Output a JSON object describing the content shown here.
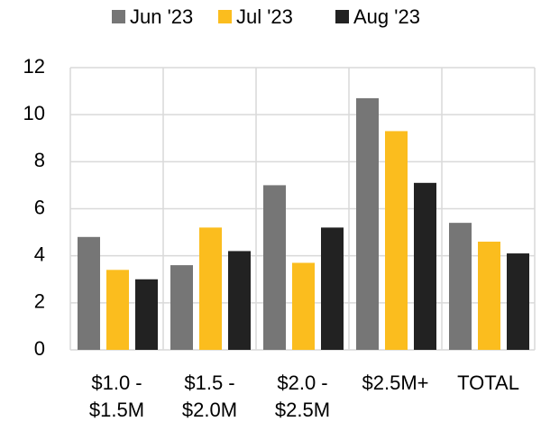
{
  "chart_data": {
    "type": "bar",
    "categories": [
      "$1.0 - $1.5M",
      "$1.5 - $2.0M",
      "$2.0 - $2.5M",
      "$2.5M+",
      "TOTAL"
    ],
    "series": [
      {
        "name": "Jun '23",
        "color": "#767676",
        "values": [
          4.8,
          3.6,
          7.0,
          10.7,
          5.4
        ]
      },
      {
        "name": "Jul '23",
        "color": "#fbbd1e",
        "values": [
          3.4,
          5.2,
          3.7,
          9.3,
          4.6
        ]
      },
      {
        "name": "Aug '23",
        "color": "#222222",
        "values": [
          3.0,
          4.2,
          5.2,
          7.1,
          4.1
        ]
      }
    ],
    "ylim": [
      0,
      12
    ],
    "yticks": [
      0,
      2,
      4,
      6,
      8,
      10,
      12
    ],
    "grid": true,
    "legend": "top"
  }
}
